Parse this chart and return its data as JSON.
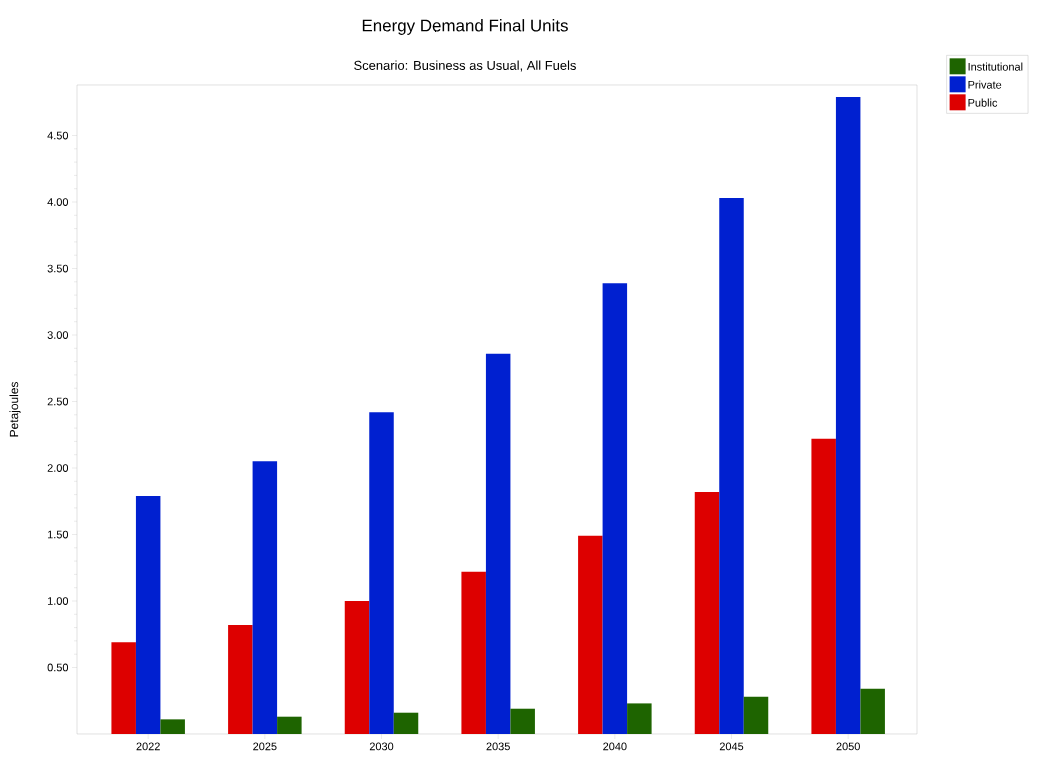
{
  "chart_data": {
    "type": "bar",
    "title": "Energy Demand Final Units",
    "subtitle": "Scenario: Business as Usual, All Fuels",
    "ylabel": "Petajoules",
    "categories": [
      "2022",
      "2025",
      "2030",
      "2035",
      "2040",
      "2045",
      "2050"
    ],
    "series": [
      {
        "name": "Public",
        "color": "#dd0000",
        "values": [
          0.69,
          0.82,
          1.0,
          1.22,
          1.49,
          1.82,
          2.22
        ]
      },
      {
        "name": "Private",
        "color": "#0020d0",
        "values": [
          1.79,
          2.05,
          2.42,
          2.86,
          3.39,
          4.03,
          4.79
        ]
      },
      {
        "name": "Institutional",
        "color": "#1e6400",
        "values": [
          0.11,
          0.13,
          0.16,
          0.19,
          0.23,
          0.28,
          0.34
        ]
      }
    ],
    "ylim": [
      0,
      4.88
    ],
    "yticks": [
      {
        "value": 0.5,
        "label": "0.50"
      },
      {
        "value": 1.0,
        "label": "1.00"
      },
      {
        "value": 1.5,
        "label": "1.50"
      },
      {
        "value": 2.0,
        "label": "2.00"
      },
      {
        "value": 2.5,
        "label": "2.50"
      },
      {
        "value": 3.0,
        "label": "3.00"
      },
      {
        "value": 3.5,
        "label": "3.50"
      },
      {
        "value": 4.0,
        "label": "4.00"
      },
      {
        "value": 4.5,
        "label": "4.50"
      }
    ],
    "legend": "top right"
  }
}
